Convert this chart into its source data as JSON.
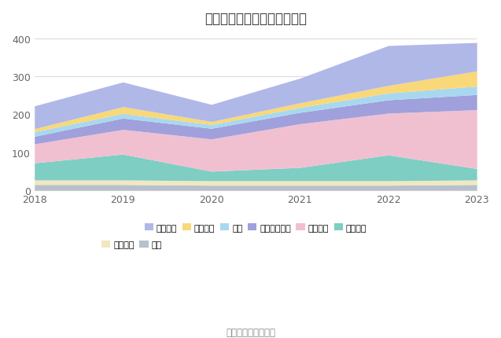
{
  "title": "历年主要资产堆积图（亿元）",
  "source": "数据来源：恒生聚源",
  "years": [
    2018,
    2019,
    2020,
    2021,
    2022,
    2023
  ],
  "series_bottom_to_top": [
    {
      "name": "其它",
      "color": "#b8c0cc",
      "values": [
        15,
        15,
        13,
        13,
        13,
        15
      ]
    },
    {
      "name": "无形资产",
      "color": "#f0e8c0",
      "values": [
        12,
        12,
        12,
        12,
        12,
        12
      ]
    },
    {
      "name": "在建工程",
      "color": "#7ecec4",
      "values": [
        45,
        68,
        25,
        35,
        68,
        30
      ]
    },
    {
      "name": "固定资产",
      "color": "#f0c0d0",
      "values": [
        50,
        65,
        85,
        115,
        110,
        155
      ]
    },
    {
      "name": "其他流动资产",
      "color": "#a0a0dc",
      "values": [
        20,
        30,
        28,
        30,
        35,
        40
      ]
    },
    {
      "name": "存货",
      "color": "#a8d8f0",
      "values": [
        12,
        12,
        10,
        13,
        18,
        22
      ]
    },
    {
      "name": "应收账款",
      "color": "#f8d878",
      "values": [
        8,
        18,
        8,
        12,
        20,
        40
      ]
    },
    {
      "name": "货币资金",
      "color": "#b0b8e8",
      "values": [
        60,
        65,
        45,
        65,
        105,
        75
      ]
    }
  ],
  "legend_row1": [
    "货币资金",
    "应收账款",
    "存货",
    "其他流动资产",
    "固定资产",
    "在建工程"
  ],
  "legend_row2": [
    "无形资产",
    "其它"
  ],
  "ylim": [
    0,
    420
  ],
  "yticks": [
    0,
    100,
    200,
    300,
    400
  ],
  "background_color": "#ffffff",
  "grid_color": "#d8d8d8",
  "legend_fontsize": 8,
  "title_fontsize": 12
}
